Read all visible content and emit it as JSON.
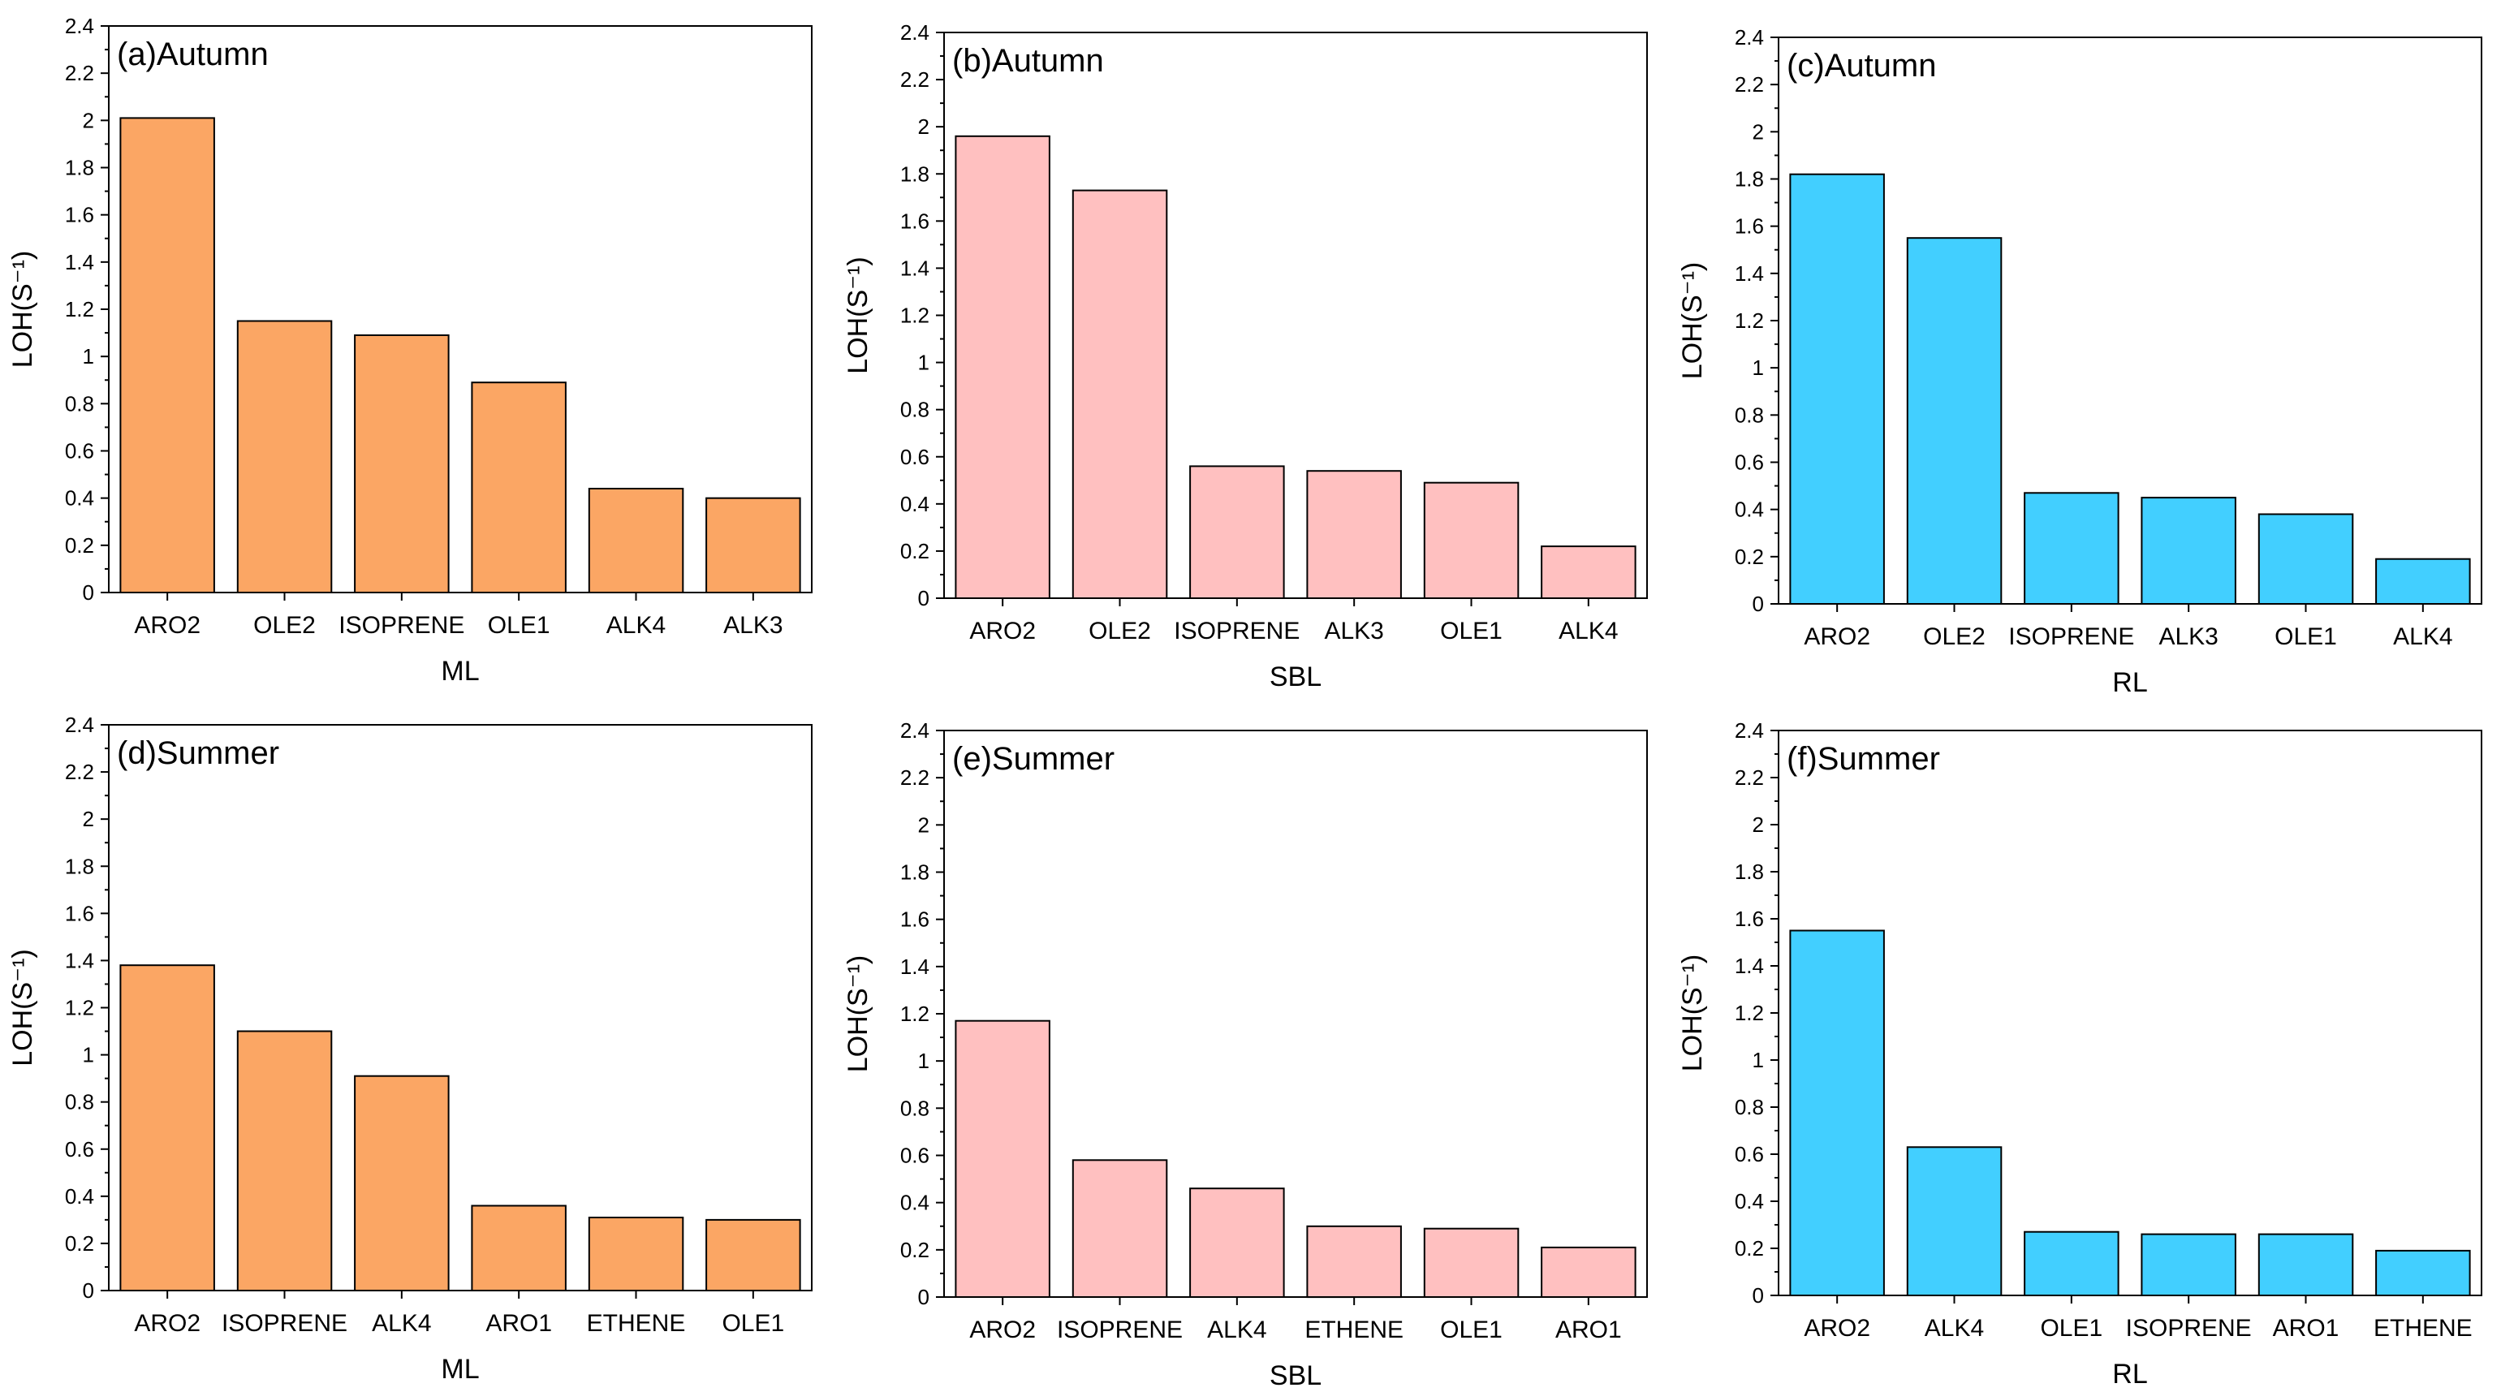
{
  "chart_data": [
    {
      "type": "bar",
      "title": "(a)Autumn",
      "xlabel": "ML",
      "ylabel": "LOH(S⁻¹)",
      "ylim": [
        0,
        2.4
      ],
      "yticks": [
        "0",
        "0.2",
        "0.4",
        "0.6",
        "0.8",
        "1",
        "1.2",
        "1.4",
        "1.6",
        "1.8",
        "2",
        "2.2",
        "2.4"
      ],
      "bar_color": "#FBA664",
      "categories": [
        "ARO2",
        "OLE2",
        "ISOPRENE",
        "OLE1",
        "ALK4",
        "ALK3"
      ],
      "values": [
        2.01,
        1.15,
        1.09,
        0.89,
        0.44,
        0.4
      ]
    },
    {
      "type": "bar",
      "title": "(b)Autumn",
      "xlabel": "SBL",
      "ylabel": "LOH(S⁻¹)",
      "ylim": [
        0,
        2.4
      ],
      "yticks": [
        "0",
        "0.2",
        "0.4",
        "0.6",
        "0.8",
        "1",
        "1.2",
        "1.4",
        "1.6",
        "1.8",
        "2",
        "2.2",
        "2.4"
      ],
      "bar_color": "#FFC0C0",
      "categories": [
        "ARO2",
        "OLE2",
        "ISOPRENE",
        "ALK3",
        "OLE1",
        "ALK4"
      ],
      "values": [
        1.96,
        1.73,
        0.56,
        0.54,
        0.49,
        0.22
      ]
    },
    {
      "type": "bar",
      "title": "(c)Autumn",
      "xlabel": "RL",
      "ylabel": "LOH(S⁻¹)",
      "ylim": [
        0,
        2.4
      ],
      "yticks": [
        "0",
        "0.2",
        "0.4",
        "0.6",
        "0.8",
        "1",
        "1.2",
        "1.4",
        "1.6",
        "1.8",
        "2",
        "2.2",
        "2.4"
      ],
      "bar_color": "#42CFFF",
      "categories": [
        "ARO2",
        "OLE2",
        "ISOPRENE",
        "ALK3",
        "OLE1",
        "ALK4"
      ],
      "values": [
        1.82,
        1.55,
        0.47,
        0.45,
        0.38,
        0.19
      ]
    },
    {
      "type": "bar",
      "title": "(d)Summer",
      "xlabel": "ML",
      "ylabel": "LOH(S⁻¹)",
      "ylim": [
        0,
        2.4
      ],
      "yticks": [
        "0",
        "0.2",
        "0.4",
        "0.6",
        "0.8",
        "1",
        "1.2",
        "1.4",
        "1.6",
        "1.8",
        "2",
        "2.2",
        "2.4"
      ],
      "bar_color": "#FBA664",
      "categories": [
        "ARO2",
        "ISOPRENE",
        "ALK4",
        "ARO1",
        "ETHENE",
        "OLE1"
      ],
      "values": [
        1.38,
        1.1,
        0.91,
        0.36,
        0.31,
        0.3
      ]
    },
    {
      "type": "bar",
      "title": "(e)Summer",
      "xlabel": "SBL",
      "ylabel": "LOH(S⁻¹)",
      "ylim": [
        0,
        2.4
      ],
      "yticks": [
        "0",
        "0.2",
        "0.4",
        "0.6",
        "0.8",
        "1",
        "1.2",
        "1.4",
        "1.6",
        "1.8",
        "2",
        "2.2",
        "2.4"
      ],
      "bar_color": "#FFC0C0",
      "categories": [
        "ARO2",
        "ISOPRENE",
        "ALK4",
        "ETHENE",
        "OLE1",
        "ARO1"
      ],
      "values": [
        1.17,
        0.58,
        0.46,
        0.3,
        0.29,
        0.21
      ]
    },
    {
      "type": "bar",
      "title": "(f)Summer",
      "xlabel": "RL",
      "ylabel": "LOH(S⁻¹)",
      "ylim": [
        0,
        2.4
      ],
      "yticks": [
        "0",
        "0.2",
        "0.4",
        "0.6",
        "0.8",
        "1",
        "1.2",
        "1.4",
        "1.6",
        "1.8",
        "2",
        "2.2",
        "2.4"
      ],
      "bar_color": "#42CFFF",
      "categories": [
        "ARO2",
        "ALK4",
        "OLE1",
        "ISOPRENE",
        "ARO1",
        "ETHENE"
      ],
      "values": [
        1.55,
        0.63,
        0.27,
        0.26,
        0.26,
        0.19
      ]
    }
  ]
}
